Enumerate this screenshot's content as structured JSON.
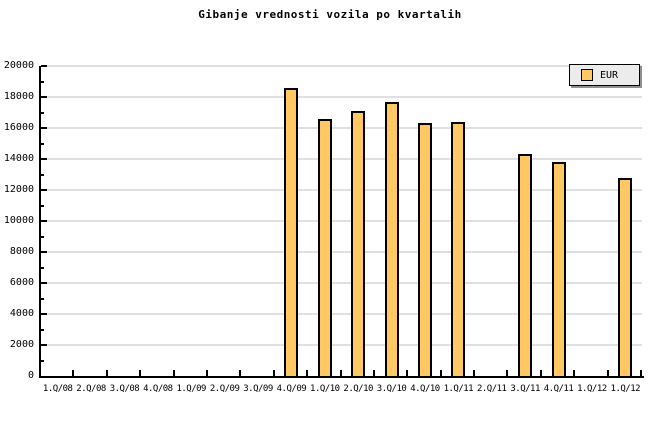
{
  "chart_data": {
    "type": "bar",
    "title": "Gibanje vrednosti vozila po kvartalih",
    "series_name": "EUR",
    "categories": [
      "1.Q/08",
      "2.Q/08",
      "3.Q/08",
      "4.Q/08",
      "1.Q/09",
      "2.Q/09",
      "3.Q/09",
      "4.Q/09",
      "1.Q/10",
      "2.Q/10",
      "3.Q/10",
      "4.Q/10",
      "1.Q/11",
      "2.Q/11",
      "3.Q/11",
      "4.Q/11",
      "1.Q/12",
      "1.Q/12"
    ],
    "values": [
      null,
      null,
      null,
      null,
      null,
      null,
      null,
      18600,
      16600,
      17100,
      17700,
      16300,
      16400,
      null,
      14300,
      13800,
      null,
      12800
    ],
    "xlabel": "",
    "ylabel": "",
    "ylim": [
      0,
      20000
    ],
    "ytick_step": 2000,
    "ytick_minor_step": 1000,
    "ytick_labels": [
      "0",
      "2000",
      "4000",
      "6000",
      "8000",
      "10000",
      "12000",
      "14000",
      "16000",
      "18000",
      "20000"
    ],
    "grid": "horizontal-major",
    "legend_position": "top-right",
    "legend_entries": [
      "EUR"
    ],
    "colors": {
      "bar_fill": "#FFC862",
      "bar_border": "#000000",
      "grid": "#E0E0E0",
      "axis": "#000000",
      "legend_bg": "#ECECEC",
      "legend_border": "#000000",
      "legend_shadow": "#909090",
      "text": "#000000",
      "bg": "#FFFFFF"
    }
  }
}
